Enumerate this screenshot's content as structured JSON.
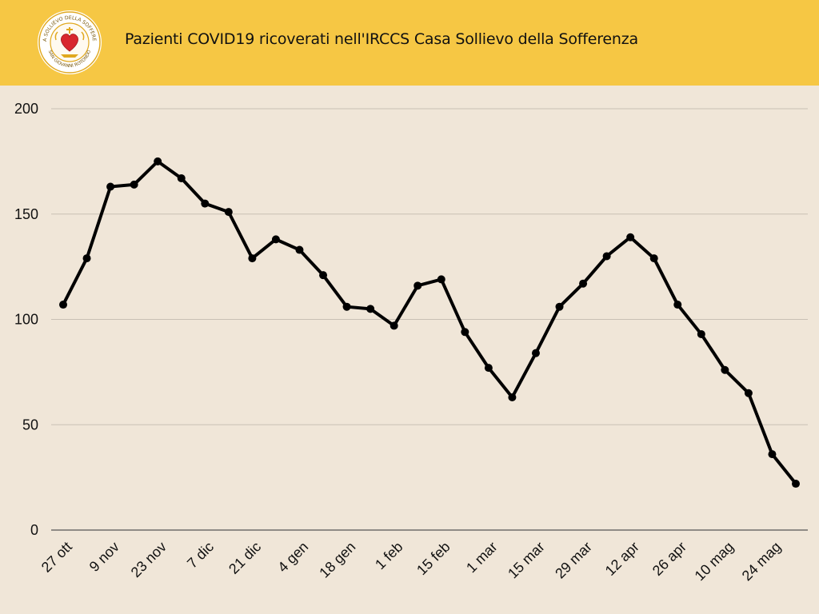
{
  "header": {
    "title": "Pazienti COVID19 ricoverati nell'IRCCS Casa Sollievo della Sofferenza",
    "logo": {
      "icon": "hospital-seal-logo",
      "ring_text": "CASA SOLLIEVO DELLA SOFFERENZA · SAN GIOVANNI ROTONDO"
    }
  },
  "colors": {
    "header_bg": "#f6c744",
    "page_bg": "#f0e6d8",
    "line": "#000000",
    "grid": "#c9c0b4"
  },
  "chart_data": {
    "type": "line",
    "title": "Pazienti COVID19 ricoverati nell'IRCCS Casa Sollievo della Sofferenza",
    "xlabel": "",
    "ylabel": "",
    "ylim": [
      0,
      200
    ],
    "yticks": [
      0,
      50,
      100,
      150,
      200
    ],
    "grid": true,
    "legend": "none",
    "x_tick_labels": [
      "27 ott",
      "9 nov",
      "23 nov",
      "7 dic",
      "21 dic",
      "4 gen",
      "18 gen",
      "1 feb",
      "15 feb",
      "1 mar",
      "15 mar",
      "29 mar",
      "12 apr",
      "26 apr",
      "10 mag",
      "24 mag"
    ],
    "series": [
      {
        "values": [
          107,
          129,
          163,
          164,
          175,
          167,
          155,
          151,
          129,
          138,
          133,
          121,
          106,
          105,
          97,
          116,
          119,
          94,
          77,
          63,
          84,
          106,
          117,
          130,
          139,
          129,
          107,
          93,
          76,
          65,
          36,
          22
        ]
      }
    ]
  }
}
